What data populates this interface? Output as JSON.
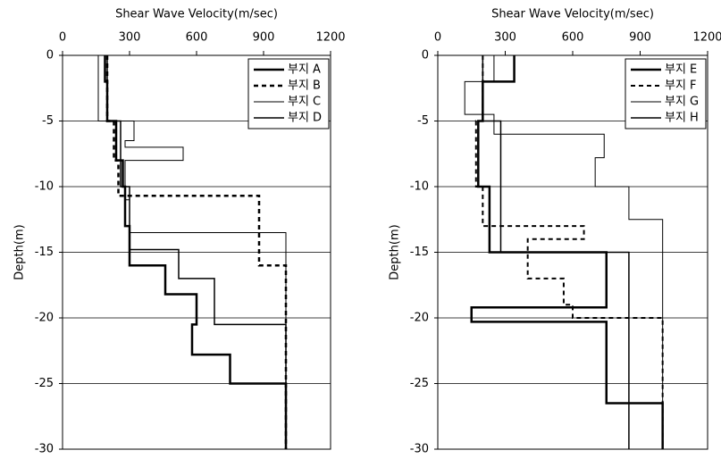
{
  "chart_data": [
    {
      "type": "line",
      "xlabel": "Shear Wave Velocity(m/sec)",
      "ylabel": "Depth(m)",
      "xlim": [
        0,
        1200
      ],
      "xticks": [
        0,
        300,
        600,
        900,
        1200
      ],
      "ylim": [
        -30,
        0
      ],
      "yticks": [
        0,
        -5,
        -10,
        -15,
        -20,
        -25,
        -30
      ],
      "grid": true,
      "legend": "upper right",
      "series": [
        {
          "name": "부지 A",
          "color": "#000000",
          "line_style": "solid",
          "line_width": 2.5,
          "x": [
            190,
            190,
            200,
            200,
            240,
            240,
            270,
            270,
            280,
            280,
            300,
            300,
            460,
            460,
            600,
            600,
            580,
            580,
            750,
            750,
            1000,
            1000
          ],
          "values": [
            0,
            -2,
            -2,
            -5,
            -5,
            -8,
            -8,
            -10,
            -10,
            -13,
            -13,
            -16,
            -16,
            -18.2,
            -18.2,
            -20.5,
            -20.5,
            -22.8,
            -22.8,
            -25,
            -25,
            -30
          ]
        },
        {
          "name": "부지 B",
          "color": "#000000",
          "line_style": "dotted",
          "line_width": 2.5,
          "x": [
            200,
            200,
            230,
            230,
            250,
            250,
            880,
            880,
            1000,
            1000
          ],
          "values": [
            0,
            -5,
            -5,
            -8,
            -8,
            -10.7,
            -10.7,
            -16,
            -16,
            -30
          ]
        },
        {
          "name": "부지 C",
          "color": "#000000",
          "line_style": "solid",
          "line_width": 1,
          "x": [
            160,
            160,
            320,
            320,
            280,
            280,
            540,
            540,
            280,
            280,
            300,
            300,
            1000,
            1000
          ],
          "values": [
            0,
            -5,
            -5,
            -6.5,
            -6.5,
            -7,
            -7,
            -8,
            -8,
            -11,
            -11,
            -13.5,
            -13.5,
            -30
          ]
        },
        {
          "name": "부지 D",
          "color": "#000000",
          "line_style": "solid",
          "line_width": 1.5,
          "x": [
            200,
            200,
            260,
            260,
            300,
            300,
            520,
            520,
            680,
            680,
            1000,
            1000
          ],
          "values": [
            0,
            -5,
            -5,
            -10,
            -10,
            -14.8,
            -14.8,
            -17,
            -17,
            -20.5,
            -20.5,
            -30
          ]
        }
      ]
    },
    {
      "type": "line",
      "xlabel": "Shear Wave Velocity(m/sec)",
      "ylabel": "Depth(m)",
      "xlim": [
        0,
        1200
      ],
      "xticks": [
        0,
        300,
        600,
        900,
        1200
      ],
      "ylim": [
        -30,
        0
      ],
      "yticks": [
        0,
        -5,
        -10,
        -15,
        -20,
        -25,
        -30
      ],
      "grid": true,
      "legend": "upper right",
      "series": [
        {
          "name": "부지 E",
          "color": "#000000",
          "line_style": "solid",
          "line_width": 2.5,
          "x": [
            340,
            340,
            200,
            200,
            180,
            180,
            230,
            230,
            750,
            750,
            150,
            150,
            750,
            750,
            1000,
            1000
          ],
          "values": [
            0,
            -2,
            -2,
            -5,
            -5,
            -10,
            -10,
            -15,
            -15,
            -19.2,
            -19.2,
            -20.3,
            -20.3,
            -26.5,
            -26.5,
            -30
          ]
        },
        {
          "name": "부지 F",
          "color": "#000000",
          "line_style": "dotted",
          "line_width": 2,
          "x": [
            200,
            200,
            170,
            170,
            200,
            200,
            650,
            650,
            400,
            400,
            560,
            560,
            600,
            600,
            1000,
            1000
          ],
          "values": [
            0,
            -5,
            -5,
            -10,
            -10,
            -13,
            -13,
            -14,
            -14,
            -17,
            -17,
            -19,
            -19,
            -20,
            -20,
            -30
          ]
        },
        {
          "name": "부지 G",
          "color": "#000000",
          "line_style": "solid",
          "line_width": 1,
          "x": [
            250,
            250,
            120,
            120,
            250,
            250,
            740,
            740,
            700,
            700,
            850,
            850,
            1000,
            1000
          ],
          "values": [
            0,
            -2,
            -2,
            -4.5,
            -4.5,
            -6,
            -6,
            -7.8,
            -7.8,
            -10,
            -10,
            -12.5,
            -12.5,
            -30
          ]
        },
        {
          "name": "부지 H",
          "color": "#000000",
          "line_style": "solid",
          "line_width": 1.5,
          "x": [
            200,
            200,
            280,
            280,
            850,
            850
          ],
          "values": [
            0,
            -5,
            -5,
            -15,
            -15,
            -30
          ]
        }
      ]
    }
  ]
}
